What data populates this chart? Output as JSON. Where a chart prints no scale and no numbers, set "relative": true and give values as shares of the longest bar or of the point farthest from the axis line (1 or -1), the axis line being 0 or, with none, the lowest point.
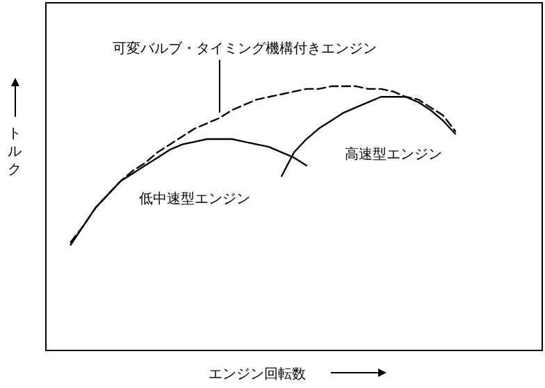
{
  "chart_data": {
    "type": "line",
    "relative": true,
    "xlabel": "エンジン回転数",
    "ylabel": "トルク",
    "categories": [
      null,
      null,
      null,
      null,
      null,
      null,
      null,
      null,
      null,
      null,
      null,
      null,
      null,
      null,
      null,
      null,
      null,
      null,
      null,
      null,
      null,
      null,
      null,
      null,
      null,
      null,
      null,
      null,
      null,
      null,
      null,
      null,
      null,
      null,
      null,
      null,
      null,
      null,
      null,
      null,
      null
    ],
    "legend": false,
    "grid": false,
    "tick_labels": false,
    "series": [
      {
        "name": "可変バルブ・タイミング機構付きエンジン",
        "color": "#000000",
        "line_style": "dashed",
        "values": [
          null,
          null,
          0.41,
          0.47,
          0.54,
          0.59,
          0.64,
          0.68,
          0.71,
          0.75,
          0.78,
          0.81,
          0.84,
          0.86,
          0.88,
          0.91,
          0.93,
          0.95,
          0.96,
          0.97,
          0.98,
          0.99,
          0.99,
          1.0,
          1.0,
          1.0,
          0.99,
          0.99,
          0.98,
          0.96,
          0.95,
          0.92,
          0.89,
          0.83,
          null,
          null,
          null,
          null,
          null,
          null,
          null
        ]
      },
      {
        "name": "低中速型エンジン",
        "color": "#000000",
        "line_style": "solid",
        "values": [
          null,
          null,
          0.4,
          0.47,
          0.54,
          0.59,
          0.64,
          0.67,
          0.7,
          0.73,
          0.76,
          0.78,
          0.79,
          0.8,
          0.8,
          0.8,
          0.79,
          0.78,
          0.77,
          0.75,
          0.73,
          0.7,
          null,
          null,
          null,
          null,
          null,
          null,
          null,
          null,
          null,
          null,
          null,
          null,
          null,
          null,
          null,
          null,
          null,
          null,
          null
        ]
      },
      {
        "name": "高速型エンジン",
        "color": "#000000",
        "line_style": "solid",
        "values": [
          null,
          null,
          null,
          null,
          null,
          null,
          null,
          null,
          null,
          null,
          null,
          null,
          null,
          null,
          null,
          null,
          null,
          null,
          null,
          0.66,
          0.75,
          0.8,
          0.84,
          0.87,
          0.9,
          0.92,
          0.94,
          0.96,
          0.96,
          0.96,
          0.94,
          0.91,
          0.87,
          0.82,
          null,
          null,
          null,
          null,
          null,
          null,
          null
        ]
      }
    ]
  }
}
